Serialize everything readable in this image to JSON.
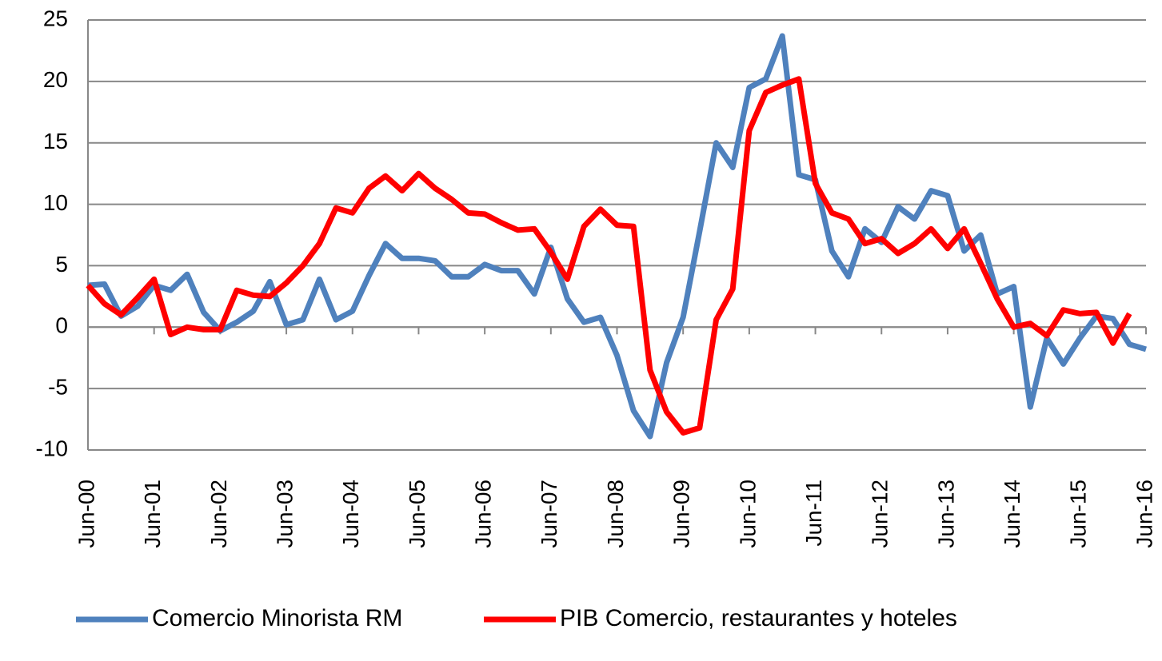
{
  "chart_data": {
    "type": "line",
    "categories": [
      "Jun-00",
      null,
      null,
      null,
      "Jun-01",
      null,
      null,
      null,
      "Jun-02",
      null,
      null,
      null,
      "Jun-03",
      null,
      null,
      null,
      "Jun-04",
      null,
      null,
      null,
      "Jun-05",
      null,
      null,
      null,
      "Jun-06",
      null,
      null,
      null,
      "Jun-07",
      null,
      null,
      null,
      "Jun-08",
      null,
      null,
      null,
      "Jun-09",
      null,
      null,
      null,
      "Jun-10",
      null,
      null,
      null,
      "Jun-11",
      null,
      null,
      null,
      "Jun-12",
      null,
      null,
      null,
      "Jun-13",
      null,
      null,
      null,
      "Jun-14",
      null,
      null,
      null,
      "Jun-15",
      null,
      null,
      null,
      "Jun-16"
    ],
    "series": [
      {
        "name": "Comercio Minorista RM",
        "color": "#4f81bd",
        "values": [
          3.4,
          3.5,
          0.9,
          1.7,
          3.4,
          3.0,
          4.3,
          1.2,
          -0.3,
          0.4,
          1.3,
          3.7,
          0.2,
          0.6,
          3.9,
          0.6,
          1.3,
          4.2,
          6.8,
          5.6,
          5.6,
          5.4,
          4.1,
          4.1,
          5.1,
          4.6,
          4.6,
          2.7,
          6.5,
          2.3,
          0.4,
          0.8,
          -2.3,
          -6.8,
          -8.9,
          -2.9,
          0.8,
          7.8,
          15.0,
          13.0,
          19.5,
          20.2,
          23.7,
          12.4,
          12.0,
          6.2,
          4.1,
          8.0,
          6.9,
          9.8,
          8.8,
          11.1,
          10.7,
          6.2,
          7.5,
          2.7,
          3.3,
          -6.5,
          -0.9,
          -3.0,
          -0.9,
          0.9,
          0.7,
          -1.4,
          -1.8
        ]
      },
      {
        "name": "PIB Comercio, restaurantes y hoteles",
        "color": "#ff0000",
        "values": [
          3.4,
          1.9,
          1.0,
          2.4,
          3.9,
          -0.6,
          0.0,
          -0.2,
          -0.2,
          3.0,
          2.6,
          2.5,
          3.6,
          5.0,
          6.8,
          9.7,
          9.3,
          11.3,
          12.3,
          11.1,
          12.5,
          11.3,
          10.4,
          9.3,
          9.2,
          8.5,
          7.9,
          8.0,
          6.1,
          3.9,
          8.2,
          9.6,
          8.3,
          8.2,
          -3.5,
          -6.9,
          -8.6,
          -8.2,
          0.6,
          3.1,
          16.0,
          19.1,
          19.7,
          20.2,
          11.7,
          9.3,
          8.8,
          6.8,
          7.2,
          6.0,
          6.8,
          8.0,
          6.4,
          8.0,
          5.2,
          2.3,
          0.0,
          0.3,
          -0.7,
          1.4,
          1.1,
          1.2,
          -1.3,
          1.1,
          null
        ]
      }
    ],
    "ylim": [
      -10,
      25
    ],
    "yticks": [
      -10,
      -5,
      0,
      5,
      10,
      15,
      20,
      25
    ],
    "grid": true,
    "legend": "bottom"
  }
}
